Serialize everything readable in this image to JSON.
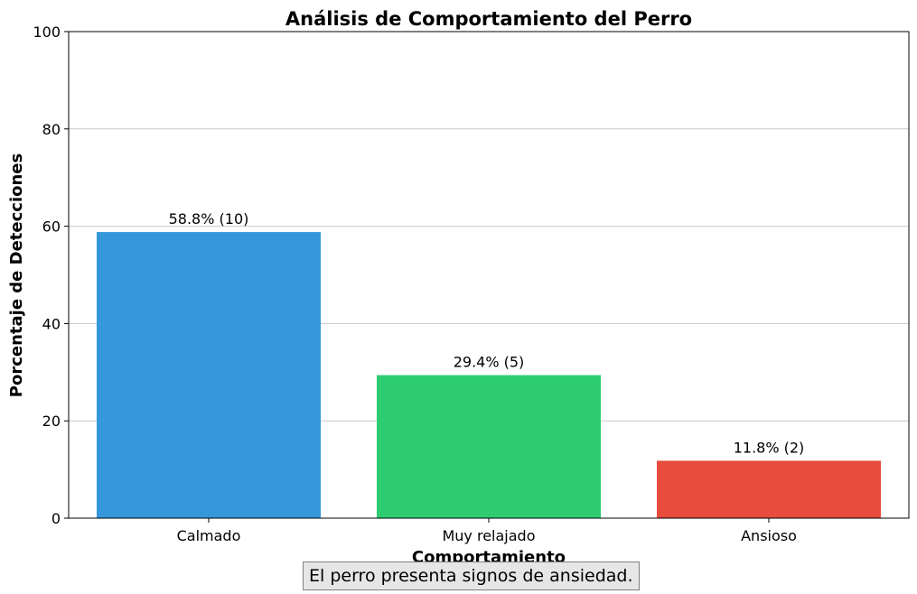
{
  "chart_data": {
    "type": "bar",
    "title": "Análisis de Comportamiento del Perro",
    "xlabel": "Comportamiento",
    "ylabel": "Porcentaje de Detecciones",
    "ylim": [
      0,
      100
    ],
    "yticks": [
      0,
      20,
      40,
      60,
      80,
      100
    ],
    "categories": [
      "Calmado",
      "Muy relajado",
      "Ansioso"
    ],
    "values": [
      58.8,
      29.4,
      11.8
    ],
    "counts": [
      10,
      5,
      2
    ],
    "data_labels": [
      "58.8% (10)",
      "29.4% (5)",
      "11.8% (2)"
    ],
    "colors": [
      "#3498db",
      "#2ecc71",
      "#e74c3c"
    ],
    "grid": "horizontal"
  },
  "note": "El perro presenta signos de ansiedad."
}
